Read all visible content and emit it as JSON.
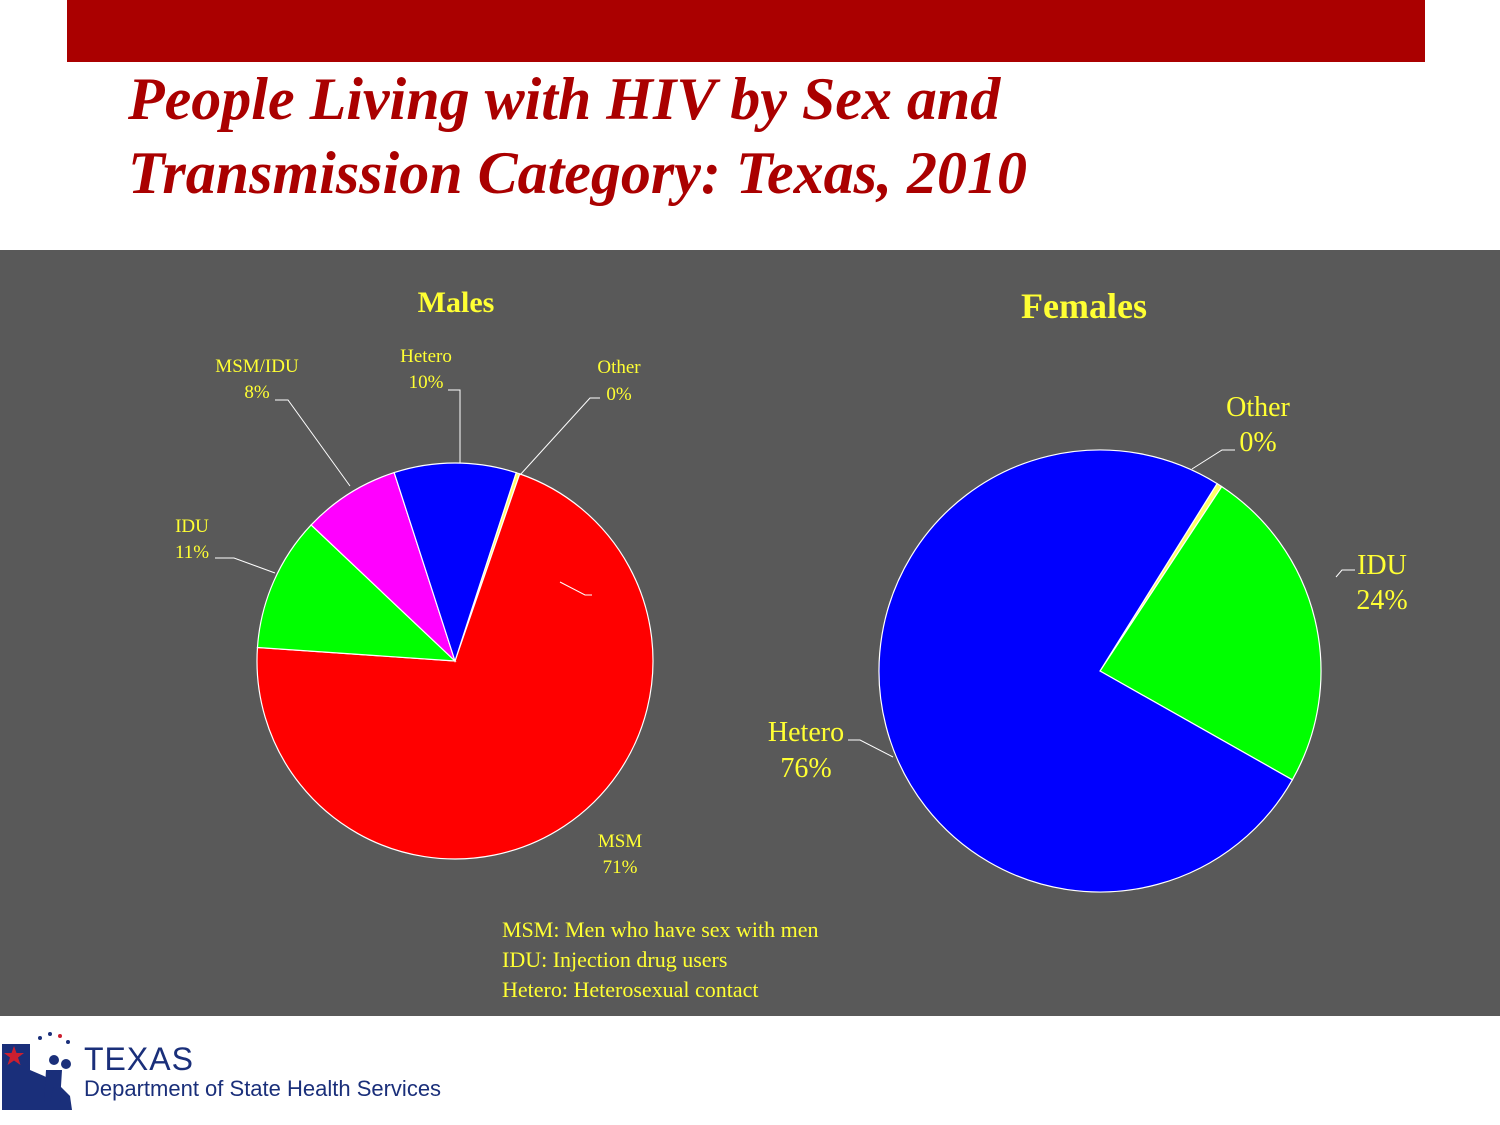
{
  "title": {
    "line1": "People Living with HIV by Sex and",
    "line2": "Transmission Category: Texas, 2010"
  },
  "colors": {
    "header_bar": "#aa0000",
    "title_text": "#aa0000",
    "panel_background": "#595959",
    "label_text": "#ffff33"
  },
  "chart_data": [
    {
      "type": "pie",
      "title": "Males",
      "categories": [
        "MSM",
        "IDU",
        "MSM/IDU",
        "Hetero",
        "Other"
      ],
      "values": [
        71,
        11,
        8,
        10,
        0.3
      ],
      "labels": [
        {
          "line1": "MSM",
          "line2": "71%"
        },
        {
          "line1": "IDU",
          "line2": "11%"
        },
        {
          "line1": "MSM/IDU",
          "line2": "8%"
        },
        {
          "line1": "Hetero",
          "line2": "10%"
        },
        {
          "line1": "Other",
          "line2": "0%"
        }
      ],
      "colors": [
        "#ff0000",
        "#00ff00",
        "#ff00ff",
        "#0000ff",
        "#ffff66"
      ]
    },
    {
      "type": "pie",
      "title": "Females",
      "categories": [
        "IDU",
        "Hetero",
        "Other"
      ],
      "values": [
        24,
        76,
        0.4
      ],
      "labels": [
        {
          "line1": "IDU",
          "line2": "24%"
        },
        {
          "line1": "Hetero",
          "line2": "76%"
        },
        {
          "line1": "Other",
          "line2": "0%"
        }
      ],
      "colors": [
        "#00ff00",
        "#0000ff",
        "#ffff66"
      ]
    }
  ],
  "notes": [
    "MSM: Men who have sex with men",
    "IDU: Injection drug users",
    "Hetero: Heterosexual contact"
  ],
  "logo": {
    "texas": "TEXAS",
    "department": "Department of State Health Services"
  }
}
